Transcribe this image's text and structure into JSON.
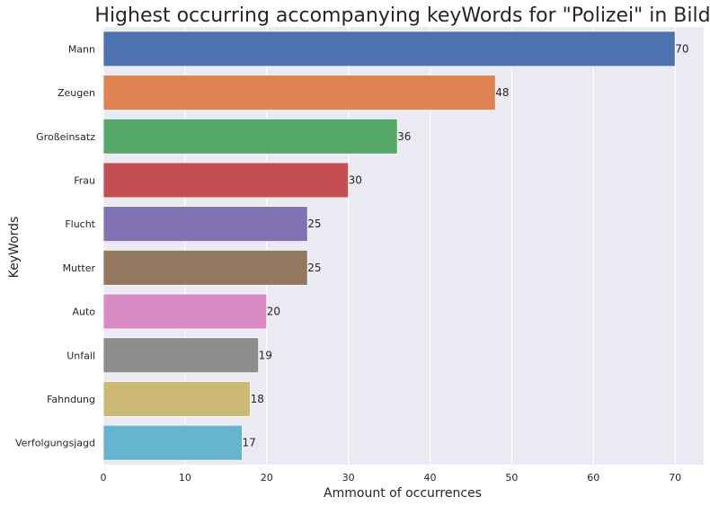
{
  "chart_data": {
    "type": "bar",
    "orientation": "horizontal",
    "title": "Highest occurring accompanying keyWords for \"Polizei\" in Bild",
    "xlabel": "Ammount of occurrences",
    "ylabel": "KeyWords",
    "categories": [
      "Mann",
      "Zeugen",
      "Großeinsatz",
      "Frau",
      "Flucht",
      "Mutter",
      "Auto",
      "Unfall",
      "Fahndung",
      "Verfolgungsjagd"
    ],
    "values": [
      70,
      48,
      36,
      30,
      25,
      25,
      20,
      19,
      18,
      17
    ],
    "xlim": [
      0,
      73.5
    ],
    "xticks": [
      0,
      10,
      20,
      30,
      40,
      50,
      60,
      70
    ],
    "grid": true,
    "colors": [
      "#4c72b0",
      "#dd8452",
      "#55a868",
      "#c44e52",
      "#8172b3",
      "#937860",
      "#da8bc3",
      "#8c8c8c",
      "#ccb974",
      "#64b5cd"
    ],
    "background": "#eaeaf2"
  }
}
